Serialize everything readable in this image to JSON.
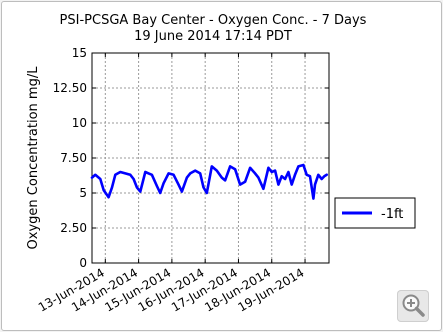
{
  "chart_data": {
    "type": "line",
    "title": "PSI-PCSGA Bay Center - Oxygen Conc. - 7 Days",
    "subtitle": "19 June 2014 17:14 PDT",
    "xlabel": "",
    "ylabel": "Oxygen Concentration mg/L",
    "ylim": [
      0,
      15
    ],
    "y_ticks": [
      "0",
      "2.50",
      "5",
      "7.50",
      "10",
      "12.50",
      "15"
    ],
    "x_ticks": [
      "13-Jun-2014",
      "14-Jun-2014",
      "15-Jun-2014",
      "16-Jun-2014",
      "17-Jun-2014",
      "18-Jun-2014",
      "19-Jun-2014"
    ],
    "x_range_days": [
      12.6,
      19.72
    ],
    "grid": true,
    "legend_position": "right, outside",
    "series": [
      {
        "name": "-1ft",
        "color": "#0000ff",
        "x_days": [
          12.6,
          12.7,
          12.85,
          12.95,
          13.1,
          13.2,
          13.3,
          13.45,
          13.6,
          13.75,
          13.85,
          13.95,
          14.05,
          14.2,
          14.3,
          14.4,
          14.55,
          14.65,
          14.75,
          14.9,
          15.05,
          15.2,
          15.3,
          15.45,
          15.55,
          15.7,
          15.85,
          15.95,
          16.05,
          16.2,
          16.35,
          16.5,
          16.6,
          16.75,
          16.9,
          17.05,
          17.2,
          17.35,
          17.5,
          17.6,
          17.75,
          17.9,
          18.0,
          18.1,
          18.2,
          18.3,
          18.4,
          18.5,
          18.6,
          18.7,
          18.8,
          18.95,
          19.05,
          19.15,
          19.25,
          19.3,
          19.4,
          19.5,
          19.58,
          19.65
        ],
        "values": [
          6.1,
          6.3,
          6.0,
          5.2,
          4.7,
          5.4,
          6.3,
          6.5,
          6.4,
          6.3,
          6.0,
          5.4,
          5.1,
          6.5,
          6.4,
          6.3,
          5.5,
          5.0,
          5.7,
          6.4,
          6.3,
          5.6,
          5.1,
          6.1,
          6.4,
          6.6,
          6.4,
          5.4,
          5.0,
          6.9,
          6.6,
          6.1,
          5.9,
          6.9,
          6.7,
          5.6,
          5.8,
          6.8,
          6.4,
          6.1,
          5.3,
          6.8,
          6.5,
          6.6,
          5.6,
          6.2,
          6.0,
          6.5,
          5.6,
          6.3,
          6.9,
          7.0,
          6.3,
          6.2,
          4.6,
          5.6,
          6.3,
          6.0,
          6.2,
          6.3
        ]
      }
    ]
  },
  "legend": {
    "label": "-1ft"
  },
  "zoom": {
    "icon": "zoom-in-magnifier-icon"
  }
}
